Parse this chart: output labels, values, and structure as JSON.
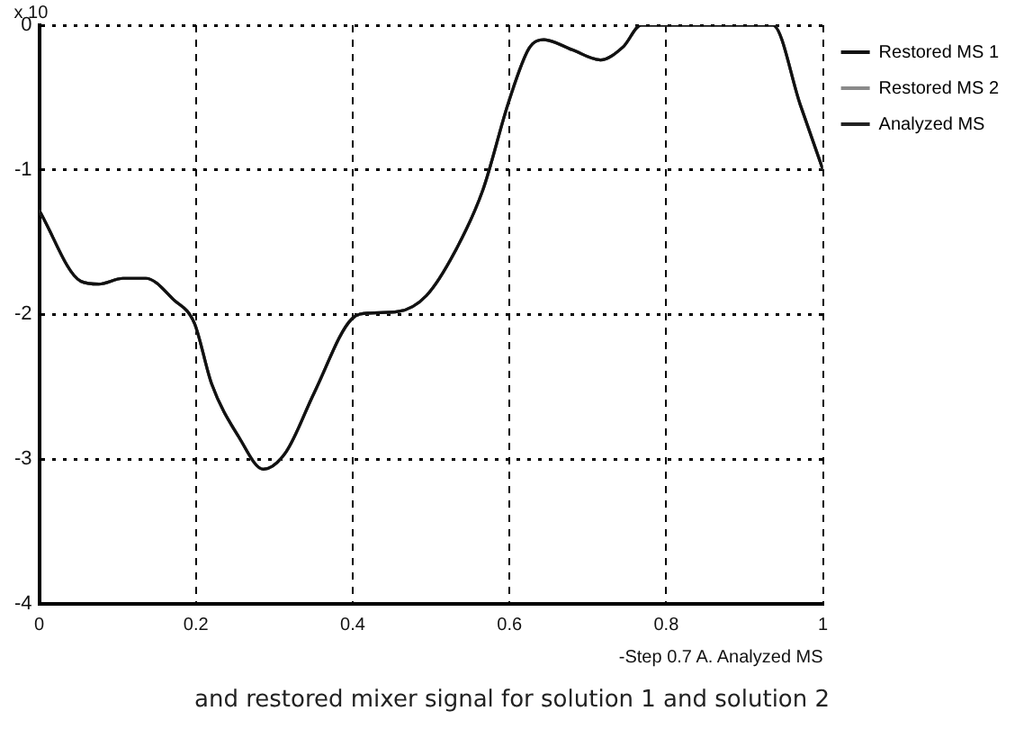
{
  "chart_data": {
    "type": "line",
    "title": "and restored mixer signal for solution 1 and solution 2",
    "xlabel": "-Step 0.7 A. Analyzed MS",
    "annotations": [
      "x 10"
    ],
    "x": [
      0,
      0.053,
      0.076,
      0.107,
      0.136,
      0.172,
      0.198,
      0.22,
      0.255,
      0.286,
      0.315,
      0.351,
      0.399,
      0.422,
      0.458,
      0.494,
      0.53,
      0.566,
      0.599,
      0.625,
      0.644,
      0.68,
      0.716,
      0.745,
      0.768,
      0.936,
      0.971,
      1
    ],
    "series": [
      {
        "name": "Restored MS 1",
        "color": "#111111",
        "values": [
          -1.28,
          -1.77,
          -1.79,
          -1.75,
          -1.75,
          -1.9,
          -2.06,
          -2.48,
          -2.85,
          -3.07,
          -2.95,
          -2.54,
          -2.03,
          -1.99,
          -1.98,
          -1.87,
          -1.57,
          -1.14,
          -0.53,
          -0.16,
          -0.1,
          -0.17,
          -0.24,
          -0.15,
          0,
          0,
          -0.55,
          -1
        ]
      },
      {
        "name": "Restored MS 2",
        "color": "#8a8a8a",
        "values": [
          -1.28,
          -1.77,
          -1.79,
          -1.75,
          -1.75,
          -1.9,
          -2.06,
          -2.48,
          -2.85,
          -3.07,
          -2.95,
          -2.54,
          -2.03,
          -1.99,
          -1.98,
          -1.87,
          -1.57,
          -1.14,
          -0.53,
          -0.16,
          -0.1,
          -0.17,
          -0.24,
          -0.15,
          0,
          0,
          -0.55,
          -1
        ]
      },
      {
        "name": "Analyzed MS",
        "color": "#222222",
        "values": [
          -1.28,
          -1.77,
          -1.79,
          -1.75,
          -1.75,
          -1.9,
          -2.06,
          -2.48,
          -2.85,
          -3.07,
          -2.95,
          -2.54,
          -2.03,
          -1.99,
          -1.98,
          -1.87,
          -1.57,
          -1.14,
          -0.53,
          -0.16,
          -0.1,
          -0.17,
          -0.24,
          -0.15,
          0,
          0,
          -0.55,
          -1
        ]
      }
    ],
    "xlim": [
      0,
      1
    ],
    "xticks": [
      0,
      0.2,
      0.4,
      0.6,
      0.8,
      1
    ],
    "ylim": [
      -4,
      0
    ],
    "yticks": [
      -4,
      -3,
      -2,
      -1,
      0
    ],
    "grid": true,
    "legend": "top right",
    "marker": "none",
    "line_style": "solid"
  }
}
